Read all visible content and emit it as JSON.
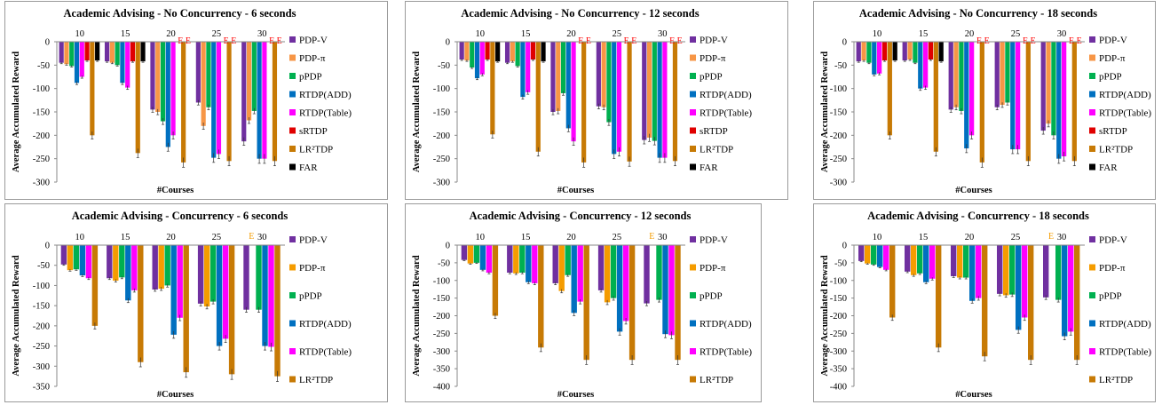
{
  "colors": {
    "PDP-V": "#7030a0",
    "PDP-π": "#f79646",
    "PDP-π (concurrency)": "#f59c00",
    "pPDP": "#00b050",
    "RTDP(ADD)": "#0070c0",
    "RTDP(Table)": "#ff00ff",
    "sRTDP": "#e00000",
    "LR²TDP": "#c77a05",
    "FAR": "#000000",
    "E-marker": "#ff0000",
    "E-marker (concurrency)": "#f59c00"
  },
  "chart_data": [
    {
      "type": "bar",
      "title": "Academic Advising - No Concurrency - 6 seconds",
      "xlabel": "#Courses",
      "ylabel": "Average Accumulated Reward",
      "categories": [
        "10",
        "15",
        "20",
        "25",
        "30"
      ],
      "ylim": [
        -300,
        0
      ],
      "yticks": [
        0,
        -50,
        -100,
        -150,
        -200,
        -250,
        -300
      ],
      "legend_position": "right",
      "series": [
        {
          "name": "PDP-V",
          "values": [
            -45,
            -42,
            -145,
            -130,
            -213
          ]
        },
        {
          "name": "PDP-π",
          "values": [
            -48,
            -45,
            -150,
            -180,
            -168
          ]
        },
        {
          "name": "pPDP",
          "values": [
            -52,
            -50,
            -170,
            -140,
            -148
          ]
        },
        {
          "name": "RTDP(ADD)",
          "values": [
            -88,
            -88,
            -225,
            -248,
            -250
          ]
        },
        {
          "name": "RTDP(Table)",
          "values": [
            -75,
            -98,
            -200,
            -240,
            -250
          ]
        },
        {
          "name": "sRTDP",
          "values": [
            -40,
            -42,
            null,
            null,
            null
          ]
        },
        {
          "name": "LR²TDP",
          "values": [
            -200,
            -238,
            -258,
            -255,
            -255
          ]
        },
        {
          "name": "FAR",
          "values": [
            -40,
            -42,
            null,
            null,
            null
          ]
        }
      ],
      "e_markers": [
        "",
        "",
        "E E",
        "E E",
        "E E"
      ]
    },
    {
      "type": "bar",
      "title": "Academic Advising - No Concurrency - 12 seconds",
      "xlabel": "#Courses",
      "ylabel": "Average Accumulated Reward",
      "categories": [
        "10",
        "15",
        "20",
        "25",
        "30"
      ],
      "ylim": [
        -300,
        0
      ],
      "yticks": [
        0,
        -50,
        -100,
        -150,
        -200,
        -250,
        -300
      ],
      "legend_position": "right",
      "series": [
        {
          "name": "PDP-V",
          "values": [
            -38,
            -45,
            -150,
            -138,
            -210
          ]
        },
        {
          "name": "PDP-π",
          "values": [
            -40,
            -42,
            -148,
            -140,
            -205
          ]
        },
        {
          "name": "pPDP",
          "values": [
            -55,
            -52,
            -110,
            -172,
            -212
          ]
        },
        {
          "name": "RTDP(ADD)",
          "values": [
            -78,
            -118,
            -185,
            -240,
            -248
          ]
        },
        {
          "name": "RTDP(Table)",
          "values": [
            -70,
            -108,
            -213,
            -235,
            -248
          ]
        },
        {
          "name": "sRTDP",
          "values": [
            -38,
            -38,
            null,
            null,
            null
          ]
        },
        {
          "name": "LR²TDP",
          "values": [
            -198,
            -235,
            -258,
            -256,
            -255
          ]
        },
        {
          "name": "FAR",
          "values": [
            -42,
            -42,
            null,
            null,
            null
          ]
        }
      ],
      "e_markers": [
        "",
        "",
        "E E",
        "E E",
        "E E"
      ]
    },
    {
      "type": "bar",
      "title": "Academic Advising - No Concurrency - 18 seconds",
      "xlabel": "#Courses",
      "ylabel": "Average Accumulated Reward",
      "categories": [
        "10",
        "15",
        "20",
        "25",
        "30"
      ],
      "ylim": [
        -300,
        0
      ],
      "yticks": [
        0,
        -50,
        -100,
        -150,
        -200,
        -250,
        -300
      ],
      "legend_position": "right",
      "series": [
        {
          "name": "PDP-V",
          "values": [
            -42,
            -40,
            -145,
            -140,
            -190
          ]
        },
        {
          "name": "PDP-π",
          "values": [
            -40,
            -38,
            -140,
            -135,
            -175
          ]
        },
        {
          "name": "pPDP",
          "values": [
            -45,
            -45,
            -148,
            -130,
            -200
          ]
        },
        {
          "name": "RTDP(ADD)",
          "values": [
            -70,
            -100,
            -228,
            -230,
            -250
          ]
        },
        {
          "name": "RTDP(Table)",
          "values": [
            -68,
            -98,
            -200,
            -230,
            -245
          ]
        },
        {
          "name": "sRTDP",
          "values": [
            -40,
            -38,
            null,
            null,
            null
          ]
        },
        {
          "name": "LR²TDP",
          "values": [
            -200,
            -235,
            -258,
            -255,
            -255
          ]
        },
        {
          "name": "FAR",
          "values": [
            -40,
            -42,
            null,
            null,
            null
          ]
        }
      ],
      "e_markers": [
        "",
        "",
        "E E",
        "E E",
        "E E"
      ]
    },
    {
      "type": "bar",
      "title": "Academic Advising - Concurrency - 6 seconds",
      "xlabel": "#Courses",
      "ylabel": "Average Accumulated Reward",
      "categories": [
        "10",
        "15",
        "20",
        "25",
        "30"
      ],
      "ylim": [
        -350,
        0
      ],
      "yticks": [
        0,
        -50,
        -100,
        -150,
        -200,
        -250,
        -300,
        -350
      ],
      "legend_position": "right",
      "series": [
        {
          "name": "PDP-V",
          "values": [
            -48,
            -82,
            -110,
            -145,
            -160
          ]
        },
        {
          "name": "PDP-π",
          "values": [
            -62,
            -88,
            -108,
            -152,
            null
          ]
        },
        {
          "name": "pPDP",
          "values": [
            -60,
            -80,
            -100,
            -140,
            -160
          ]
        },
        {
          "name": "RTDP(ADD)",
          "values": [
            -75,
            -137,
            -222,
            -250,
            -250
          ]
        },
        {
          "name": "RTDP(Table)",
          "values": [
            -82,
            -112,
            -180,
            -232,
            -252
          ]
        },
        {
          "name": "LR²TDP",
          "values": [
            -200,
            -290,
            -315,
            -320,
            -325
          ]
        }
      ],
      "e_markers": [
        "",
        "",
        "",
        "",
        "E"
      ]
    },
    {
      "type": "bar",
      "title": "Academic Advising - Concurrency - 12 seconds",
      "xlabel": "#Courses",
      "ylabel": "Average Accumulated Reward",
      "categories": [
        "10",
        "15",
        "20",
        "25",
        "30"
      ],
      "ylim": [
        -400,
        0
      ],
      "yticks": [
        0,
        -50,
        -100,
        -150,
        -200,
        -250,
        -300,
        -350,
        -400
      ],
      "legend_position": "right",
      "series": [
        {
          "name": "PDP-V",
          "values": [
            -42,
            -78,
            -108,
            -128,
            -165
          ]
        },
        {
          "name": "PDP-π",
          "values": [
            -52,
            -80,
            -130,
            -162,
            null
          ]
        },
        {
          "name": "pPDP",
          "values": [
            -50,
            -78,
            -85,
            -150,
            -155
          ]
        },
        {
          "name": "RTDP(ADD)",
          "values": [
            -70,
            -105,
            -192,
            -245,
            -252
          ]
        },
        {
          "name": "RTDP(Table)",
          "values": [
            -78,
            -108,
            -160,
            -215,
            -255
          ]
        },
        {
          "name": "LR²TDP",
          "values": [
            -200,
            -290,
            -325,
            -325,
            -325
          ]
        }
      ],
      "e_markers": [
        "",
        "",
        "",
        "",
        "E"
      ]
    },
    {
      "type": "bar",
      "title": "Academic Advising - Concurrency - 18 seconds",
      "xlabel": "#Courses",
      "ylabel": "Average Accumulated Reward",
      "categories": [
        "10",
        "15",
        "20",
        "25",
        "30"
      ],
      "ylim": [
        -400,
        0
      ],
      "yticks": [
        0,
        -50,
        -100,
        -150,
        -200,
        -250,
        -300,
        -350,
        -400
      ],
      "legend_position": "right",
      "series": [
        {
          "name": "PDP-V",
          "values": [
            -45,
            -75,
            -88,
            -138,
            -148
          ]
        },
        {
          "name": "PDP-π",
          "values": [
            -52,
            -85,
            -92,
            -142,
            null
          ]
        },
        {
          "name": "pPDP",
          "values": [
            -55,
            -80,
            -92,
            -140,
            -155
          ]
        },
        {
          "name": "RTDP(ADD)",
          "values": [
            -62,
            -105,
            -158,
            -240,
            -258
          ]
        },
        {
          "name": "RTDP(Table)",
          "values": [
            -70,
            -95,
            -150,
            -205,
            -245
          ]
        },
        {
          "name": "LR²TDP",
          "values": [
            -205,
            -290,
            -315,
            -325,
            -325
          ]
        }
      ],
      "e_markers": [
        "",
        "",
        "",
        "",
        "E"
      ]
    }
  ]
}
